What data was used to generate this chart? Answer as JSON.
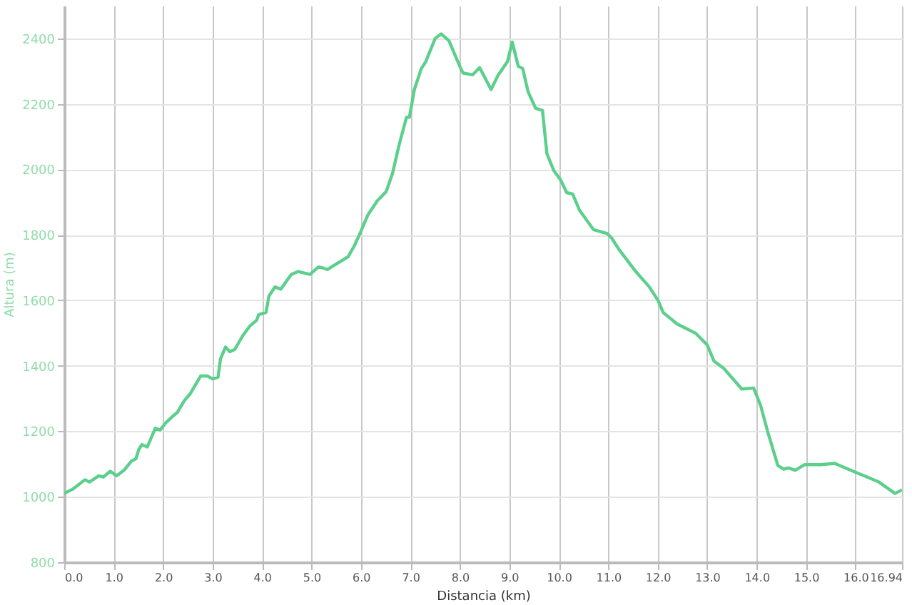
{
  "chart_data": {
    "type": "line",
    "xlabel": "Distancia (km)",
    "ylabel": "Altura (m)",
    "xlim": [
      0,
      16.94
    ],
    "ylim": [
      800,
      2500
    ],
    "xticks": [
      {
        "value": 0,
        "label": "0.0"
      },
      {
        "value": 1,
        "label": "1.0"
      },
      {
        "value": 2,
        "label": "2.0"
      },
      {
        "value": 3,
        "label": "3.0"
      },
      {
        "value": 4,
        "label": "4.0"
      },
      {
        "value": 5,
        "label": "5.0"
      },
      {
        "value": 6,
        "label": "6.0"
      },
      {
        "value": 7,
        "label": "7.0"
      },
      {
        "value": 8,
        "label": "8.0"
      },
      {
        "value": 9,
        "label": "9.0"
      },
      {
        "value": 10,
        "label": "10.0"
      },
      {
        "value": 11,
        "label": "11.0"
      },
      {
        "value": 12,
        "label": "12.0"
      },
      {
        "value": 13,
        "label": "13.0"
      },
      {
        "value": 14,
        "label": "14.0"
      },
      {
        "value": 15,
        "label": "15.0"
      },
      {
        "value": 16,
        "label": "16.0"
      },
      16.94
    ],
    "yticks": [
      800,
      1000,
      1200,
      1400,
      1600,
      1800,
      2000,
      2200,
      2400
    ],
    "grid": true,
    "marker": "none",
    "line_style": "solid",
    "x": [
      0,
      0.18,
      0.42,
      0.51,
      0.7,
      0.79,
      0.93,
      1.06,
      1.21,
      1.36,
      1.45,
      1.51,
      1.57,
      1.68,
      1.84,
      1.94,
      2.06,
      2.18,
      2.29,
      2.43,
      2.55,
      2.76,
      2.89,
      3.0,
      3.11,
      3.16,
      3.26,
      3.35,
      3.45,
      3.61,
      3.75,
      3.89,
      3.93,
      4.08,
      4.14,
      4.26,
      4.38,
      4.59,
      4.73,
      4.97,
      5.14,
      5.25,
      5.32,
      5.48,
      5.74,
      5.86,
      6.0,
      6.14,
      6.33,
      6.51,
      6.64,
      6.77,
      6.92,
      6.98,
      7.08,
      7.22,
      7.31,
      7.5,
      7.62,
      7.78,
      7.92,
      8.04,
      8.07,
      8.26,
      8.4,
      8.63,
      8.77,
      8.96,
      9.06,
      9.18,
      9.27,
      9.38,
      9.53,
      9.67,
      9.76,
      9.9,
      10.04,
      10.16,
      10.28,
      10.42,
      10.7,
      10.98,
      11.07,
      11.22,
      11.54,
      11.83,
      12.01,
      12.11,
      12.39,
      12.77,
      13.0,
      13.14,
      13.33,
      13.7,
      13.94,
      14.08,
      14.22,
      14.43,
      14.55,
      14.64,
      14.78,
      14.97,
      15.3,
      15.58,
      15.95,
      16.24,
      16.47,
      16.8,
      16.94
    ],
    "series": [
      {
        "color": "#5ccf8c",
        "values": [
          1010,
          1024,
          1052,
          1045,
          1064,
          1060,
          1078,
          1064,
          1081,
          1109,
          1116,
          1145,
          1159,
          1152,
          1209,
          1204,
          1227,
          1244,
          1258,
          1294,
          1315,
          1369,
          1369,
          1360,
          1365,
          1421,
          1457,
          1443,
          1450,
          1492,
          1521,
          1539,
          1556,
          1563,
          1613,
          1641,
          1634,
          1679,
          1688,
          1679,
          1702,
          1698,
          1694,
          1709,
          1733,
          1765,
          1811,
          1861,
          1904,
          1932,
          1989,
          2074,
          2159,
          2159,
          2244,
          2308,
          2329,
          2400,
          2414,
          2393,
          2343,
          2301,
          2294,
          2289,
          2311,
          2244,
          2287,
          2329,
          2389,
          2315,
          2308,
          2237,
          2187,
          2180,
          2048,
          1996,
          1967,
          1929,
          1925,
          1875,
          1816,
          1804,
          1790,
          1755,
          1691,
          1641,
          1599,
          1563,
          1528,
          1499,
          1464,
          1414,
          1393,
          1329,
          1332,
          1279,
          1201,
          1095,
          1084,
          1088,
          1081,
          1098,
          1098,
          1102,
          1078,
          1060,
          1045,
          1010,
          1021
        ]
      }
    ]
  }
}
